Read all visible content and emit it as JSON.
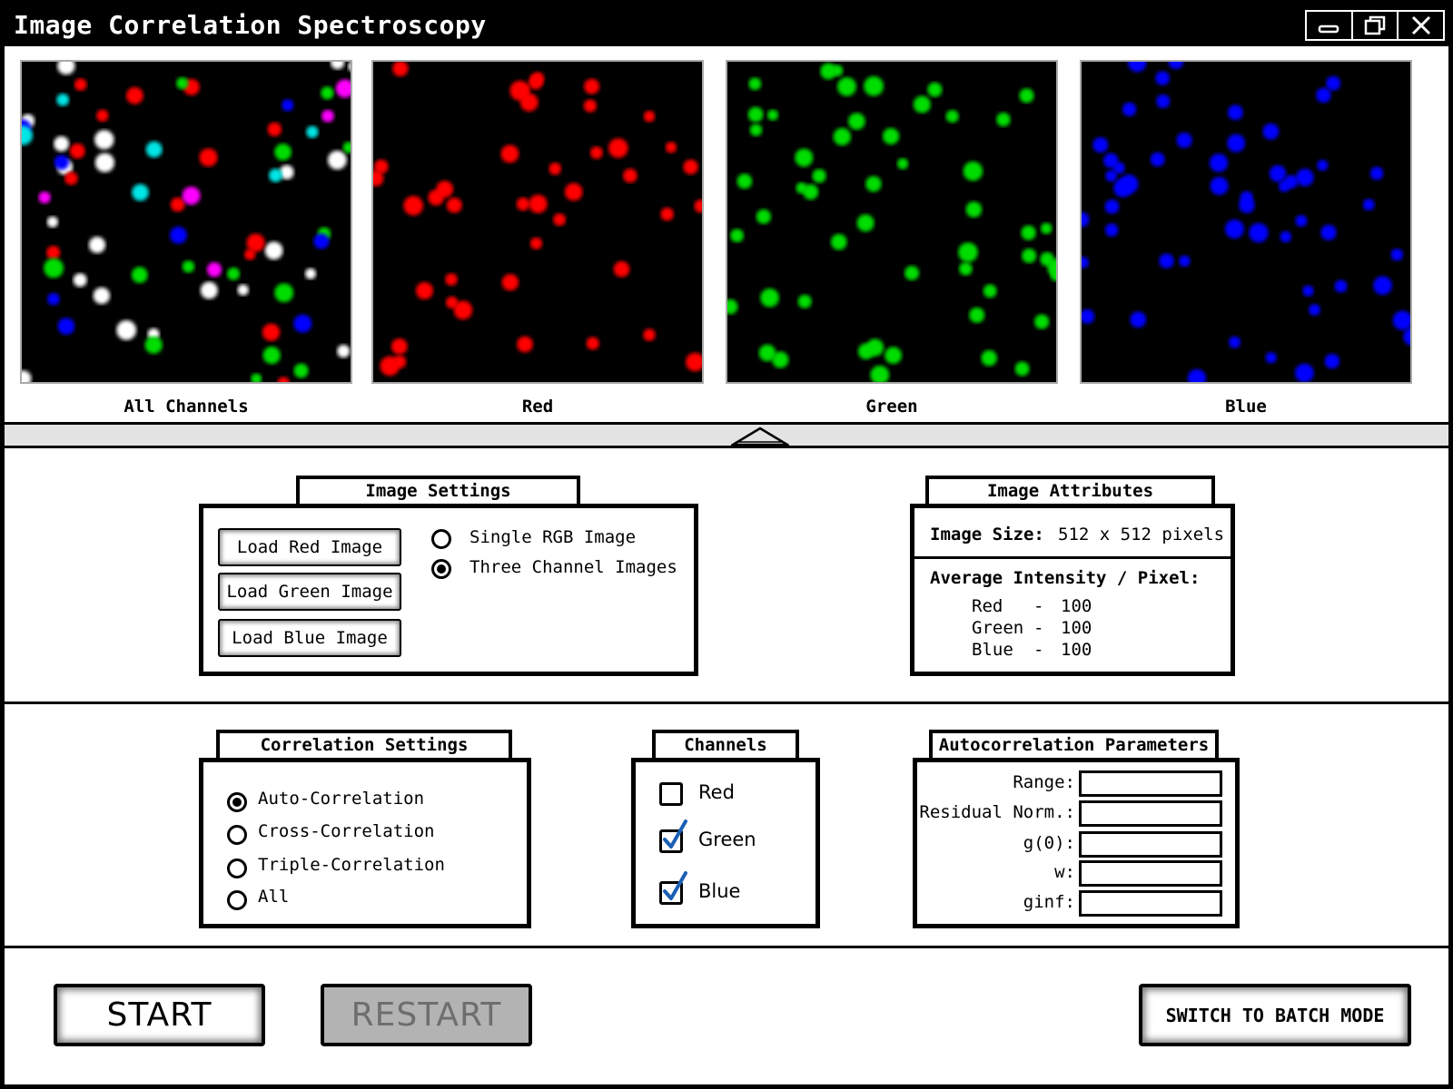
{
  "window": {
    "title": "Image Correlation Spectroscopy",
    "controls": [
      "minimize-icon",
      "restore-icon",
      "close-icon"
    ]
  },
  "images": [
    {
      "label": "All Channels",
      "channel": "all"
    },
    {
      "label": "Red",
      "channel": "red",
      "color": "#ff0000"
    },
    {
      "label": "Green",
      "channel": "green",
      "color": "#00dd00"
    },
    {
      "label": "Blue",
      "channel": "blue",
      "color": "#0000ff"
    }
  ],
  "image_settings": {
    "title": "Image Settings",
    "load_red_label": "Load Red Image",
    "load_green_label": "Load Green Image",
    "load_blue_label": "Load Blue Image",
    "mode_options": [
      {
        "label": "Single RGB Image",
        "selected": false
      },
      {
        "label": "Three Channel Images",
        "selected": true
      }
    ]
  },
  "image_attributes": {
    "title": "Image Attributes",
    "size_label": "Image Size:",
    "size_value": "512 x 512 pixels",
    "avg_label": "Average Intensity / Pixel:",
    "rows": [
      {
        "name": "Red",
        "sep": "-",
        "value": "100"
      },
      {
        "name": "Green",
        "sep": "-",
        "value": "100"
      },
      {
        "name": "Blue",
        "sep": "-",
        "value": "100"
      }
    ]
  },
  "correlation_settings": {
    "title": "Correlation Settings",
    "options": [
      {
        "label": "Auto-Correlation",
        "selected": true
      },
      {
        "label": "Cross-Correlation",
        "selected": false
      },
      {
        "label": "Triple-Correlation",
        "selected": false
      },
      {
        "label": "All",
        "selected": false
      }
    ]
  },
  "channels": {
    "title": "Channels",
    "items": [
      {
        "label": "Red",
        "checked": false
      },
      {
        "label": "Green",
        "checked": true
      },
      {
        "label": "Blue",
        "checked": true
      }
    ]
  },
  "autocorrelation": {
    "title": "Autocorrelation Parameters",
    "params": [
      {
        "label": "Range:",
        "value": ""
      },
      {
        "label": "Residual Norm.:",
        "value": ""
      },
      {
        "label": "g(0):",
        "value": ""
      },
      {
        "label": "w:",
        "value": ""
      },
      {
        "label": "ginf:",
        "value": ""
      }
    ]
  },
  "actions": {
    "start_label": "START",
    "restart_label": "RESTART",
    "restart_enabled": false,
    "batch_label": "SWITCH TO BATCH MODE"
  }
}
